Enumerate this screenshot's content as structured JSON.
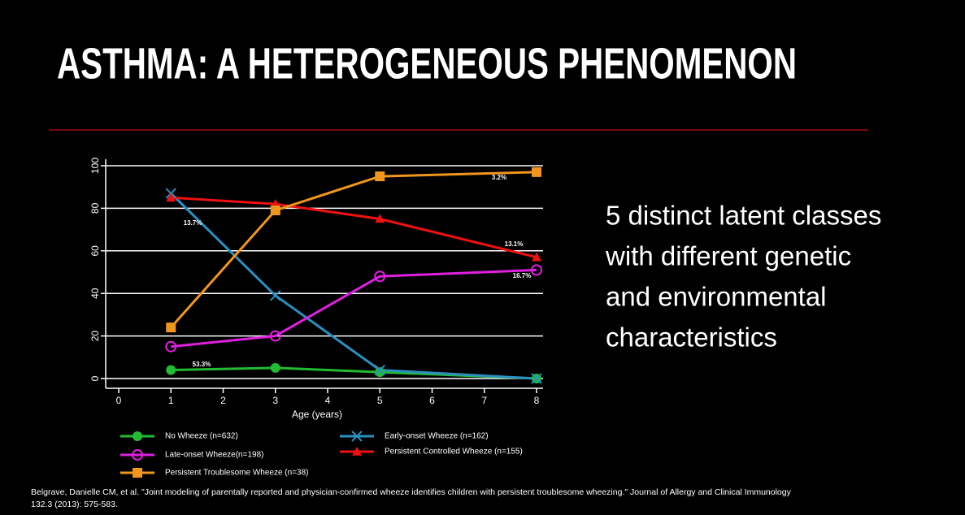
{
  "slide_title": "ASTHMA: A HETEROGENEOUS PHENOMENON",
  "side_text": [
    "5 distinct latent classes",
    "with different genetic",
    "and environmental",
    "characteristics"
  ],
  "citation": [
    "Belgrave, Danielle CM, et al. \"Joint modeling of parentally reported and physician-confirmed wheeze identifies children with persistent troublesome wheezing.\" Journal of Allergy and Clinical Immunology",
    "132.3 (2013): 575-583."
  ],
  "chart_data": {
    "type": "line",
    "x_label": "Age (years)",
    "x": [
      1,
      3,
      5,
      8
    ],
    "series": [
      {
        "name": "No Wheeze (n=632)",
        "color": "#22bb33",
        "marker": "filled-circle",
        "values": [
          4,
          5,
          3,
          0
        ]
      },
      {
        "name": "Early-onset Wheeze (n=162)",
        "color": "#2b8fc0",
        "marker": "cross",
        "values": [
          87,
          39,
          4,
          0
        ]
      },
      {
        "name": "Late-onset Wheeze(n=198)",
        "color": "#e020e0",
        "marker": "hollow-circle",
        "values": [
          15,
          20,
          48,
          51
        ]
      },
      {
        "name": "Persistent Controlled Wheeze (n=155)",
        "color": "#ee1111",
        "marker": "triangle",
        "values": [
          85,
          82,
          75,
          57
        ]
      },
      {
        "name": "Persistent Troublesome Wheeze (n=38)",
        "color": "#f0961e",
        "marker": "square",
        "values": [
          24,
          79,
          95,
          97
        ]
      }
    ],
    "annotations": [
      "53.3%",
      "13.7%",
      "13.1%",
      "16.7%",
      "3.2%"
    ],
    "xlim": [
      0,
      8
    ],
    "xticks": [
      0,
      1,
      2,
      3,
      4,
      5,
      6,
      7,
      8
    ],
    "ylim": [
      0,
      100
    ],
    "yticks": [
      0,
      20,
      40,
      60,
      80,
      100
    ],
    "grid": true
  }
}
